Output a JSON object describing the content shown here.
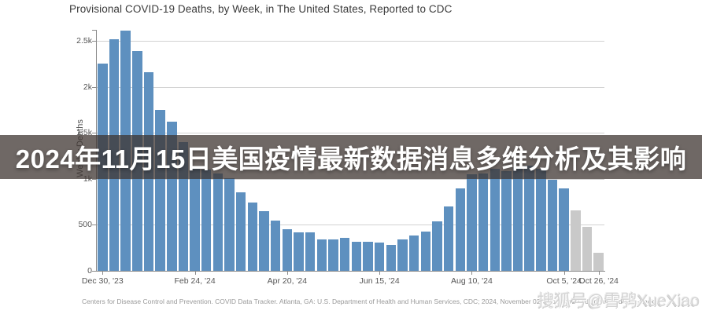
{
  "title": "Provisional COVID-19 Deaths, by Week, in The United States, Reported to CDC",
  "overlay": {
    "banner_text": "2024年11月15日美国疫情最新数据消息多维分析及其影响",
    "banner_bg": "#3f3531",
    "banner_text_color": "#ffffff"
  },
  "watermark": {
    "text": "搜狐号@雪鸮XueXiao"
  },
  "footer": {
    "citation": "Centers for Disease Control and Prevention. COVID Data Tracker. Atlanta, GA: U.S. Department of Health and Human Services, CDC; 2024, November 02. https://covid.cdc.gov/covid-data-tracker"
  },
  "chart_data": {
    "type": "bar",
    "title": "Provisional COVID-19 Deaths, by Week, in The United States, Reported to CDC",
    "xlabel": "",
    "ylabel": "Weekly Deaths",
    "ylim": [
      0,
      2620
    ],
    "grid": true,
    "legend": "none",
    "y_ticks": [
      {
        "value": 0,
        "label": "0"
      },
      {
        "value": 500,
        "label": "500"
      },
      {
        "value": 1000,
        "label": "1k"
      },
      {
        "value": 1500,
        "label": "1.5k"
      },
      {
        "value": 2000,
        "label": "2k"
      },
      {
        "value": 2500,
        "label": "2.5k"
      }
    ],
    "x_ticks": [
      {
        "index": 0,
        "label": "Dec 30, '23"
      },
      {
        "index": 8,
        "label": "Feb 24, '24"
      },
      {
        "index": 16,
        "label": "Apr 20, '24"
      },
      {
        "index": 24,
        "label": "Jun 15, '24"
      },
      {
        "index": 32,
        "label": "Aug 10, '24"
      },
      {
        "index": 40,
        "label": "Oct 5, '24"
      },
      {
        "index": 43,
        "label": "Oct 26, '24"
      }
    ],
    "weeks": 44,
    "values": [
      2250,
      2520,
      2610,
      2390,
      2160,
      1750,
      1620,
      1400,
      1135,
      1100,
      1060,
      1010,
      850,
      745,
      650,
      550,
      450,
      415,
      415,
      340,
      340,
      355,
      320,
      320,
      305,
      280,
      345,
      380,
      430,
      540,
      700,
      900,
      1050,
      1060,
      1110,
      1080,
      1130,
      1145,
      1110,
      990,
      895,
      655,
      480,
      195
    ],
    "bar_color": "#5e90bf",
    "incomplete_bar_color": "#c9c9c9",
    "incomplete_from_index": 41
  }
}
